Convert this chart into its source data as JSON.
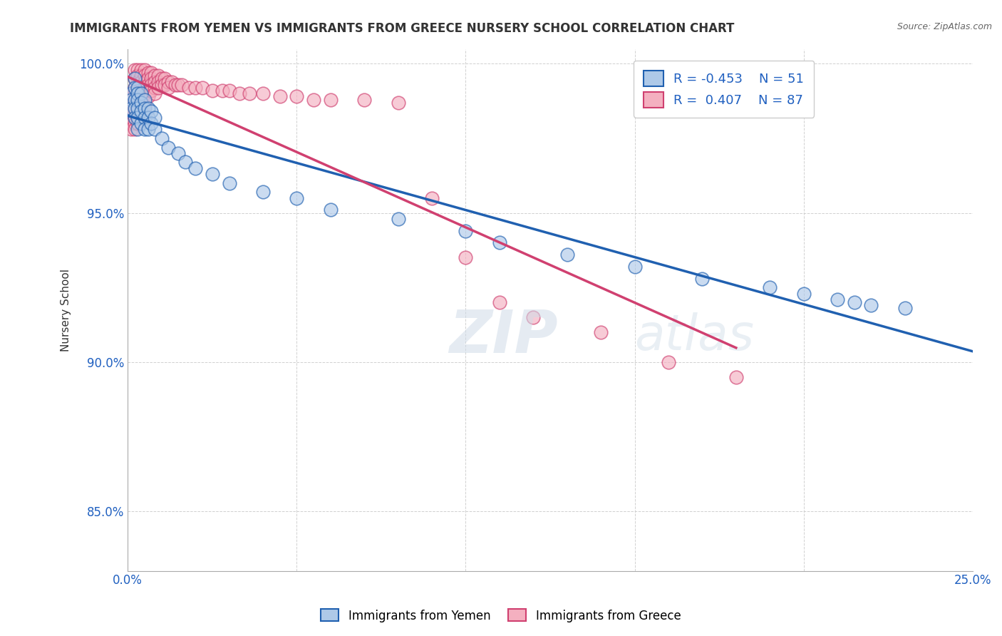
{
  "title": "IMMIGRANTS FROM YEMEN VS IMMIGRANTS FROM GREECE NURSERY SCHOOL CORRELATION CHART",
  "source": "Source: ZipAtlas.com",
  "ylabel": "Nursery School",
  "x_min": 0.0,
  "x_max": 0.25,
  "y_min": 0.83,
  "y_max": 1.005,
  "x_ticks": [
    0.0,
    0.05,
    0.1,
    0.15,
    0.2,
    0.25
  ],
  "x_tick_labels": [
    "0.0%",
    "",
    "",
    "",
    "",
    "25.0%"
  ],
  "y_ticks": [
    0.85,
    0.9,
    0.95,
    1.0
  ],
  "y_tick_labels": [
    "85.0%",
    "90.0%",
    "95.0%",
    "100.0%"
  ],
  "yemen_R": -0.453,
  "yemen_N": 51,
  "greece_R": 0.407,
  "greece_N": 87,
  "yemen_color": "#aec9e8",
  "greece_color": "#f4b0c0",
  "yemen_line_color": "#2060b0",
  "greece_line_color": "#d04070",
  "background_color": "#ffffff",
  "yemen_x": [
    0.001,
    0.001,
    0.001,
    0.002,
    0.002,
    0.002,
    0.002,
    0.002,
    0.003,
    0.003,
    0.003,
    0.003,
    0.003,
    0.003,
    0.004,
    0.004,
    0.004,
    0.004,
    0.005,
    0.005,
    0.005,
    0.005,
    0.006,
    0.006,
    0.006,
    0.007,
    0.007,
    0.008,
    0.008,
    0.01,
    0.012,
    0.015,
    0.017,
    0.02,
    0.025,
    0.03,
    0.04,
    0.05,
    0.06,
    0.08,
    0.1,
    0.11,
    0.13,
    0.15,
    0.17,
    0.19,
    0.2,
    0.21,
    0.215,
    0.22,
    0.23
  ],
  "yemen_y": [
    0.99,
    0.988,
    0.985,
    0.995,
    0.992,
    0.988,
    0.985,
    0.982,
    0.992,
    0.99,
    0.988,
    0.985,
    0.982,
    0.978,
    0.99,
    0.987,
    0.984,
    0.98,
    0.988,
    0.985,
    0.982,
    0.978,
    0.985,
    0.982,
    0.978,
    0.984,
    0.98,
    0.982,
    0.978,
    0.975,
    0.972,
    0.97,
    0.967,
    0.965,
    0.963,
    0.96,
    0.957,
    0.955,
    0.951,
    0.948,
    0.944,
    0.94,
    0.936,
    0.932,
    0.928,
    0.925,
    0.923,
    0.921,
    0.92,
    0.919,
    0.918
  ],
  "greece_x": [
    0.001,
    0.001,
    0.001,
    0.001,
    0.001,
    0.001,
    0.002,
    0.002,
    0.002,
    0.002,
    0.002,
    0.002,
    0.002,
    0.002,
    0.002,
    0.003,
    0.003,
    0.003,
    0.003,
    0.003,
    0.003,
    0.003,
    0.003,
    0.003,
    0.003,
    0.004,
    0.004,
    0.004,
    0.004,
    0.004,
    0.004,
    0.004,
    0.005,
    0.005,
    0.005,
    0.005,
    0.005,
    0.005,
    0.005,
    0.006,
    0.006,
    0.006,
    0.006,
    0.006,
    0.007,
    0.007,
    0.007,
    0.007,
    0.008,
    0.008,
    0.008,
    0.008,
    0.009,
    0.009,
    0.009,
    0.01,
    0.01,
    0.011,
    0.011,
    0.012,
    0.012,
    0.013,
    0.014,
    0.015,
    0.016,
    0.018,
    0.02,
    0.022,
    0.025,
    0.028,
    0.03,
    0.033,
    0.036,
    0.04,
    0.045,
    0.05,
    0.055,
    0.06,
    0.07,
    0.08,
    0.09,
    0.1,
    0.11,
    0.12,
    0.14,
    0.16,
    0.18
  ],
  "greece_y": [
    0.99,
    0.988,
    0.985,
    0.982,
    0.98,
    0.978,
    0.998,
    0.995,
    0.992,
    0.99,
    0.988,
    0.985,
    0.982,
    0.98,
    0.978,
    0.998,
    0.996,
    0.994,
    0.992,
    0.99,
    0.988,
    0.986,
    0.984,
    0.982,
    0.98,
    0.998,
    0.996,
    0.994,
    0.992,
    0.99,
    0.988,
    0.986,
    0.998,
    0.996,
    0.994,
    0.992,
    0.99,
    0.988,
    0.986,
    0.997,
    0.995,
    0.993,
    0.991,
    0.989,
    0.997,
    0.995,
    0.993,
    0.991,
    0.996,
    0.994,
    0.992,
    0.99,
    0.996,
    0.994,
    0.992,
    0.995,
    0.993,
    0.995,
    0.993,
    0.994,
    0.992,
    0.994,
    0.993,
    0.993,
    0.993,
    0.992,
    0.992,
    0.992,
    0.991,
    0.991,
    0.991,
    0.99,
    0.99,
    0.99,
    0.989,
    0.989,
    0.988,
    0.988,
    0.988,
    0.987,
    0.955,
    0.935,
    0.92,
    0.915,
    0.91,
    0.9,
    0.895
  ]
}
